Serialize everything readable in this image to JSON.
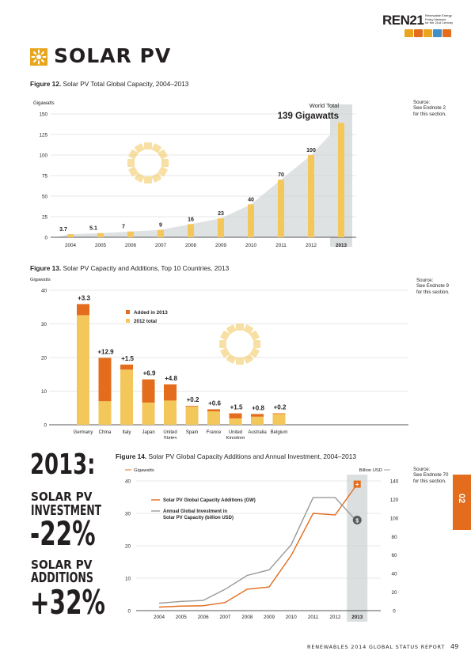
{
  "header": {
    "logo_text": "REN21",
    "logo_sub": [
      "Renewable Energy",
      "Policy Network",
      "for the 21st Century"
    ],
    "logo_colors": [
      "#e8a61f",
      "#e36c1d",
      "#e8a61f",
      "#3f8fc9",
      "#e36c1d"
    ]
  },
  "section_title": "SOLAR PV",
  "colors": {
    "accent": "#e36c1d",
    "solar_yellow": "#f3c75a",
    "gray": "#999999"
  },
  "fig12": {
    "caption_bold": "Figure 12.",
    "caption": "Solar PV Total Global Capacity, 2004–2013",
    "source": [
      "Source:",
      "See Endnote 2",
      "for this section."
    ],
    "annotation_label": "World Total",
    "annotation_value": "139 Gigawatts"
  },
  "fig13": {
    "caption_bold": "Figure 13.",
    "caption": "Solar PV Capacity and Additions, Top 10 Countries, 2013",
    "source": [
      "Source:",
      "See Endnote 9",
      "for this section."
    ]
  },
  "fig14": {
    "caption_bold": "Figure 14.",
    "caption": "Solar PV Global Capacity Additions and Annual Investment, 2004–2013",
    "source": [
      "Source:",
      "See Endnote 70",
      "for this section."
    ]
  },
  "sidebar": {
    "year": "2013:",
    "l1": "SOLAR PV",
    "l2": "INVESTMENT",
    "v1": "-22%",
    "l3": "SOLAR PV",
    "l4": "ADDITIONS",
    "v2": "+32%"
  },
  "side_tab": "02",
  "footer": {
    "report": "RENEWABLES 2014 GLOBAL STATUS REPORT",
    "page": "49"
  },
  "chart_data": [
    {
      "type": "bar",
      "ylabel": "Gigawatts",
      "ylim": [
        0,
        150
      ],
      "yticks": [
        0,
        25,
        50,
        75,
        100,
        125,
        150
      ],
      "categories": [
        "2004",
        "2005",
        "2006",
        "2007",
        "2008",
        "2009",
        "2010",
        "2011",
        "2012",
        "2013"
      ],
      "values": [
        3.7,
        5.1,
        7,
        9,
        16,
        23,
        40,
        70,
        100,
        139
      ],
      "data_labels": [
        "3.7",
        "5.1",
        "7",
        "9",
        "16",
        "23",
        "40",
        "70",
        "100",
        ""
      ],
      "highlight": "2013",
      "grid": true
    },
    {
      "type": "bar",
      "stacked": true,
      "ylabel": "Gigawatts",
      "ylim": [
        0,
        40
      ],
      "yticks": [
        0,
        10,
        20,
        30,
        40
      ],
      "categories": [
        "Germany",
        "China",
        "Italy",
        "Japan",
        "United States",
        "Spain",
        "France",
        "United Kingdom",
        "Australia",
        "Belgium"
      ],
      "category_lines": [
        [
          "Germany"
        ],
        [
          "China"
        ],
        [
          "Italy"
        ],
        [
          "Japan"
        ],
        [
          "United",
          "States"
        ],
        [
          "Spain"
        ],
        [
          "France"
        ],
        [
          "United",
          "Kingdom"
        ],
        [
          "Australia"
        ],
        [
          "Belgium"
        ]
      ],
      "series": [
        {
          "name": "2012 total",
          "color": "#f3c75a",
          "values": [
            32.6,
            7.0,
            16.4,
            6.6,
            7.2,
            5.4,
            4.0,
            1.9,
            2.4,
            3.2
          ]
        },
        {
          "name": "Added in 2013",
          "color": "#e36c1d",
          "values": [
            3.3,
            12.9,
            1.5,
            6.9,
            4.8,
            0.2,
            0.6,
            1.5,
            0.8,
            0.2
          ]
        }
      ],
      "data_labels": [
        "+3.3",
        "+12.9",
        "+1.5",
        "+6.9",
        "+4.8",
        "+0.2",
        "+0.6",
        "+1.5",
        "+0.8",
        "+0.2"
      ],
      "legend_position": "top-center",
      "grid": true
    },
    {
      "type": "line",
      "x": [
        "2004",
        "2005",
        "2006",
        "2007",
        "2008",
        "2009",
        "2010",
        "2011",
        "2012",
        "2013"
      ],
      "ylabel_left": "Gigawatts",
      "ylabel_right": "Billion USD",
      "ylim_left": [
        0,
        40
      ],
      "yticks_left": [
        0,
        10,
        20,
        30,
        40
      ],
      "ylim_right": [
        0,
        140
      ],
      "yticks_right": [
        0,
        20,
        40,
        60,
        80,
        100,
        120,
        140
      ],
      "highlight": "2013",
      "series": [
        {
          "name": "Solar PV Global Capacity Additions (GW)",
          "axis": "left",
          "color": "#e36c1d",
          "values": [
            1.1,
            1.4,
            1.5,
            2.5,
            6.6,
            7.3,
            17,
            30,
            29.5,
            39
          ]
        },
        {
          "name": "Annual Global Investment in Solar PV Capacity (billion USD)",
          "axis": "right",
          "color": "#999999",
          "values": [
            8,
            10,
            11,
            23,
            38,
            44,
            71,
            122,
            122,
            96
          ]
        }
      ],
      "legend_lines": [
        [
          "Solar PV Global Capacity Additions (GW)"
        ],
        [
          "Annual Global Investment in",
          "Solar PV Capacity (billion USD)"
        ]
      ],
      "legend_position": "top-left",
      "grid": true
    }
  ]
}
